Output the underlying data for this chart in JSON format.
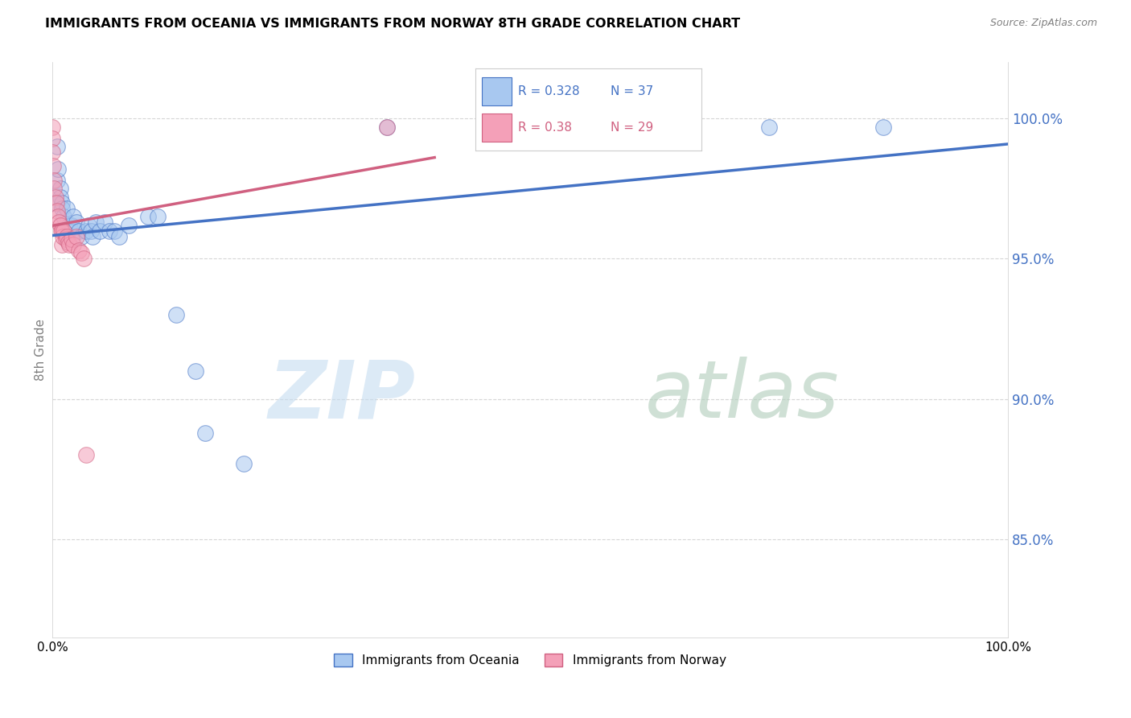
{
  "title": "IMMIGRANTS FROM OCEANIA VS IMMIGRANTS FROM NORWAY 8TH GRADE CORRELATION CHART",
  "source": "Source: ZipAtlas.com",
  "ylabel": "8th Grade",
  "legend_blue_label": "Immigrants from Oceania",
  "legend_pink_label": "Immigrants from Norway",
  "R_blue": 0.328,
  "N_blue": 37,
  "R_pink": 0.38,
  "N_pink": 29,
  "y_ticks": [
    0.85,
    0.9,
    0.95,
    1.0
  ],
  "y_tick_labels": [
    "85.0%",
    "90.0%",
    "95.0%",
    "100.0%"
  ],
  "xlim": [
    0.0,
    1.0
  ],
  "ylim": [
    0.815,
    1.02
  ],
  "blue_color": "#A8C8F0",
  "pink_color": "#F4A0B8",
  "trend_blue": "#4472C4",
  "trend_pink": "#D06080",
  "blue_x": [
    0.002,
    0.005,
    0.005,
    0.006,
    0.008,
    0.008,
    0.01,
    0.01,
    0.012,
    0.015,
    0.018,
    0.02,
    0.022,
    0.025,
    0.028,
    0.03,
    0.035,
    0.038,
    0.04,
    0.042,
    0.045,
    0.05,
    0.055,
    0.06,
    0.065,
    0.07,
    0.08,
    0.1,
    0.11,
    0.13,
    0.15,
    0.16,
    0.2,
    0.35,
    0.62,
    0.75,
    0.87
  ],
  "blue_y": [
    0.97,
    0.99,
    0.978,
    0.982,
    0.975,
    0.972,
    0.97,
    0.968,
    0.965,
    0.968,
    0.962,
    0.962,
    0.965,
    0.963,
    0.96,
    0.958,
    0.96,
    0.962,
    0.96,
    0.958,
    0.963,
    0.96,
    0.963,
    0.96,
    0.96,
    0.958,
    0.962,
    0.965,
    0.965,
    0.93,
    0.91,
    0.888,
    0.877,
    0.997,
    0.995,
    0.997,
    0.997
  ],
  "pink_x": [
    0.0,
    0.0,
    0.0,
    0.001,
    0.002,
    0.002,
    0.003,
    0.004,
    0.005,
    0.006,
    0.007,
    0.008,
    0.009,
    0.01,
    0.01,
    0.011,
    0.012,
    0.014,
    0.015,
    0.017,
    0.018,
    0.02,
    0.022,
    0.025,
    0.028,
    0.03,
    0.033,
    0.035,
    0.35
  ],
  "pink_y": [
    0.997,
    0.993,
    0.988,
    0.983,
    0.978,
    0.975,
    0.972,
    0.97,
    0.967,
    0.965,
    0.963,
    0.962,
    0.96,
    0.96,
    0.955,
    0.958,
    0.96,
    0.957,
    0.958,
    0.956,
    0.955,
    0.957,
    0.955,
    0.958,
    0.953,
    0.952,
    0.95,
    0.88,
    0.997
  ],
  "blue_trend_xlim": [
    0.0,
    1.0
  ],
  "pink_trend_xlim": [
    0.0,
    0.4
  ]
}
